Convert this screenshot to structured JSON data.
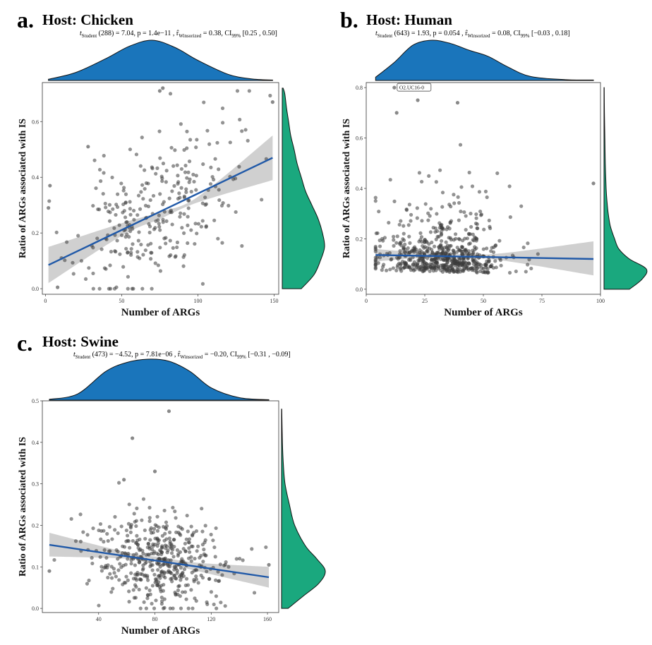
{
  "colors": {
    "x_density": "#1a75bb",
    "y_density": "#1aa87e",
    "point": "#3a3a3a",
    "fit_line": "#2059a8",
    "confidence_band": "#c8c8c8"
  },
  "charts": [
    {
      "id": "a",
      "letter": "a.",
      "title": "Host: Chicken",
      "stats": {
        "stat_name": "t",
        "stat_sub": "Student",
        "df": "(288) = 7.04",
        "p": ", p = 1.4e−11",
        "r_name": ", r̂",
        "r_sub": "Winsorized",
        "r_val": "= 0.38",
        "ci_name": ", CI",
        "ci_sub": "99%",
        "ci_val": "[0.25 , 0.50]"
      }
    },
    {
      "id": "b",
      "letter": "b.",
      "title": "Host: Human",
      "stats": {
        "stat_name": "t",
        "stat_sub": "Student",
        "df": "(643) = 1.93",
        "p": ", p = 0.054",
        "r_name": ", r̂",
        "r_sub": "Winsorized",
        "r_val": "= 0.08",
        "ci_name": ", CI",
        "ci_sub": "99%",
        "ci_val": "[−0.03 , 0.18]"
      }
    },
    {
      "id": "c",
      "letter": "c.",
      "title": "Host: Swine",
      "stats": {
        "stat_name": "t",
        "stat_sub": "Student",
        "df": "(473) = −4.52",
        "p": ", p = 7.81e−06",
        "r_name": ", r̂",
        "r_sub": "Winsorized",
        "r_val": "= −0.20",
        "ci_name": ", CI",
        "ci_sub": "99%",
        "ci_val": "[−0.31 , −0.09]"
      }
    }
  ],
  "chart_data": [
    {
      "type": "scatter",
      "title": "Host: Chicken",
      "xlabel": "Number of ARGs",
      "ylabel": "Ratio of ARGs associated with IS",
      "xlim": [
        -2,
        153
      ],
      "ylim": [
        -0.02,
        0.74
      ],
      "xticks": [
        0,
        50,
        100,
        150
      ],
      "yticks": [
        0.0,
        0.2,
        0.4,
        0.6
      ],
      "ytick_labels": [
        "0.0",
        "0.2",
        "0.4",
        "0.6"
      ],
      "grid": false,
      "n": 290,
      "seed": 11,
      "x_mean": 72,
      "x_sd": 26,
      "x_min": 2,
      "x_max": 149,
      "y_intercept": 0.085,
      "y_slope": 0.00255,
      "y_noise": 0.13,
      "fit": {
        "x": [
          2,
          149
        ],
        "y": [
          0.085,
          0.47
        ]
      },
      "band": {
        "x": [
          2,
          50,
          75,
          100,
          149
        ],
        "lower": [
          0.02,
          0.19,
          0.25,
          0.31,
          0.39
        ],
        "upper": [
          0.15,
          0.235,
          0.275,
          0.33,
          0.55
        ]
      },
      "extra_points": [
        {
          "x": 149,
          "y": 0.67
        },
        {
          "x": 2,
          "y": 0.29
        },
        {
          "x": 3,
          "y": 0.37
        },
        {
          "x": 8,
          "y": 0.005
        },
        {
          "x": 77,
          "y": 0.72
        },
        {
          "x": 75,
          "y": 0.71
        },
        {
          "x": 28,
          "y": 0.51
        }
      ],
      "x_density": {
        "x": [
          2,
          20,
          40,
          55,
          70,
          85,
          100,
          120,
          135,
          149
        ],
        "d": [
          0.03,
          0.2,
          0.55,
          0.85,
          1.0,
          0.82,
          0.5,
          0.15,
          0.04,
          0.01
        ]
      },
      "y_density": {
        "y": [
          0.0,
          0.05,
          0.1,
          0.15,
          0.2,
          0.25,
          0.3,
          0.35,
          0.4,
          0.45,
          0.5,
          0.55,
          0.6,
          0.65,
          0.7,
          0.72
        ],
        "d": [
          0.45,
          0.75,
          0.9,
          1.0,
          0.95,
          0.85,
          0.7,
          0.55,
          0.45,
          0.35,
          0.28,
          0.2,
          0.15,
          0.1,
          0.06,
          0.02
        ]
      }
    },
    {
      "type": "scatter",
      "title": "Host: Human",
      "xlabel": "Number of ARGs",
      "ylabel": "Ratio of ARGs associated with IS",
      "xlim": [
        0,
        100
      ],
      "ylim": [
        -0.02,
        0.82
      ],
      "xticks": [
        0,
        25,
        50,
        75,
        100
      ],
      "yticks": [
        0.0,
        0.2,
        0.4,
        0.6,
        0.8
      ],
      "ytick_labels": [
        "0.0",
        "0.2",
        "0.4",
        "0.6",
        "0.8"
      ],
      "grid": false,
      "n": 645,
      "seed": 22,
      "x_mean": 33,
      "x_sd": 13,
      "x_min": 4,
      "x_max": 97,
      "y_intercept": 0.135,
      "y_slope": -0.0002,
      "y_noise": 0.11,
      "fit": {
        "x": [
          4,
          97
        ],
        "y": [
          0.136,
          0.12
        ]
      },
      "band": {
        "x": [
          4,
          20,
          35,
          55,
          97
        ],
        "lower": [
          0.11,
          0.122,
          0.125,
          0.118,
          0.055
        ],
        "upper": [
          0.16,
          0.148,
          0.142,
          0.14,
          0.19
        ]
      },
      "extra_points": [
        {
          "x": 12,
          "y": 0.8
        },
        {
          "x": 22,
          "y": 0.75
        },
        {
          "x": 97,
          "y": 0.42
        },
        {
          "x": 13,
          "y": 0.7
        },
        {
          "x": 39,
          "y": 0.74
        }
      ],
      "annotation": {
        "x": 12,
        "y": 0.8,
        "text": "O2.UC16-0"
      },
      "x_density": {
        "x": [
          4,
          12,
          20,
          28,
          36,
          44,
          52,
          60,
          70,
          85,
          97
        ],
        "d": [
          0.08,
          0.45,
          0.88,
          1.0,
          0.92,
          0.75,
          0.6,
          0.35,
          0.1,
          0.02,
          0.01
        ]
      },
      "y_density": {
        "y": [
          0.0,
          0.04,
          0.08,
          0.12,
          0.16,
          0.2,
          0.25,
          0.3,
          0.35,
          0.4,
          0.5,
          0.6,
          0.7,
          0.8
        ],
        "d": [
          0.6,
          0.9,
          1.0,
          0.6,
          0.35,
          0.25,
          0.15,
          0.1,
          0.07,
          0.05,
          0.03,
          0.02,
          0.01,
          0.005
        ]
      }
    },
    {
      "type": "scatter",
      "title": "Host: Swine",
      "xlabel": "Number of ARGs",
      "ylabel": "Ratio of ARGs associated with IS",
      "xlim": [
        0,
        168
      ],
      "ylim": [
        -0.01,
        0.5
      ],
      "xticks": [
        40,
        80,
        120,
        160
      ],
      "yticks": [
        0.0,
        0.1,
        0.2,
        0.3,
        0.4,
        0.5
      ],
      "ytick_labels": [
        "0.0",
        "0.1",
        "0.2",
        "0.3",
        "0.4",
        "0.5"
      ],
      "grid": false,
      "n": 475,
      "seed": 33,
      "x_mean": 82,
      "x_sd": 24,
      "x_min": 5,
      "x_max": 161,
      "y_intercept": 0.155,
      "y_slope": -0.0005,
      "y_noise": 0.055,
      "fit": {
        "x": [
          5,
          161
        ],
        "y": [
          0.153,
          0.075
        ]
      },
      "band": {
        "x": [
          5,
          60,
          85,
          110,
          161
        ],
        "lower": [
          0.125,
          0.12,
          0.11,
          0.09,
          0.05
        ],
        "upper": [
          0.182,
          0.135,
          0.123,
          0.11,
          0.1
        ]
      },
      "extra_points": [
        {
          "x": 90,
          "y": 0.475
        },
        {
          "x": 64,
          "y": 0.41
        },
        {
          "x": 5,
          "y": 0.09
        },
        {
          "x": 161,
          "y": 0.105
        },
        {
          "x": 80,
          "y": 0.33
        },
        {
          "x": 58,
          "y": 0.31
        }
      ],
      "x_density": {
        "x": [
          5,
          25,
          45,
          60,
          75,
          90,
          105,
          120,
          140,
          161
        ],
        "d": [
          0.02,
          0.15,
          0.7,
          0.92,
          1.0,
          0.95,
          0.7,
          0.3,
          0.06,
          0.01
        ]
      },
      "y_density": {
        "y": [
          0.0,
          0.03,
          0.06,
          0.09,
          0.12,
          0.15,
          0.2,
          0.25,
          0.3,
          0.35,
          0.4,
          0.48
        ],
        "d": [
          0.15,
          0.5,
          0.85,
          1.0,
          0.8,
          0.55,
          0.3,
          0.18,
          0.08,
          0.04,
          0.02,
          0.005
        ]
      }
    }
  ]
}
